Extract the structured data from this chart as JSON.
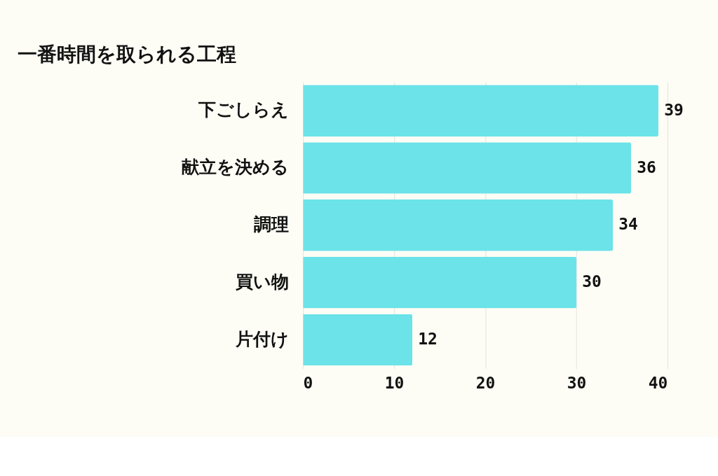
{
  "chart_data": {
    "type": "bar",
    "orientation": "horizontal",
    "title": "一番時間を取られる工程",
    "categories": [
      "下ごしらえ",
      "献立を決める",
      "調理",
      "買い物",
      "片付け"
    ],
    "values": [
      39,
      36,
      34,
      30,
      12
    ],
    "color": "#6be3e8",
    "xlim": [
      0,
      40
    ],
    "xticks": [
      0,
      10,
      20,
      30,
      40
    ],
    "grid": "x",
    "data_labels": true
  }
}
